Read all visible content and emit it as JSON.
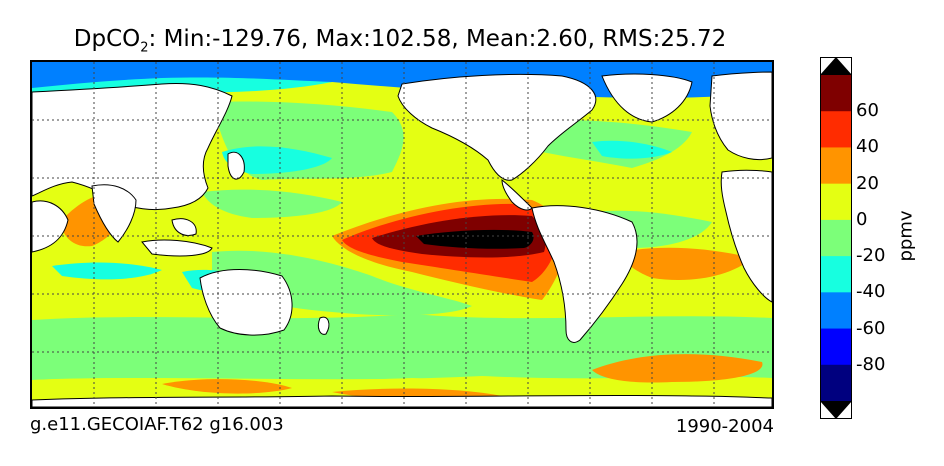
{
  "title": {
    "prefix": "DpCO",
    "subscript": "2",
    "stats": ": Min:-129.76, Max:102.58, Mean:2.60, RMS:25.72"
  },
  "caption": {
    "left": "g.e11.GECOIAF.T62 g16.003",
    "right": "1990-2004"
  },
  "colorbar": {
    "label": "ppmv",
    "ticks": [
      "60",
      "40",
      "20",
      "0",
      "-20",
      "-40",
      "-60",
      "-80"
    ],
    "levels": [
      {
        "range": "< -100",
        "color": "#000000"
      },
      {
        "range": "-100 to -80",
        "color": "#00007f"
      },
      {
        "range": "-80 to -60",
        "color": "#0000ff"
      },
      {
        "range": "-60 to -40",
        "color": "#0080ff"
      },
      {
        "range": "-40 to -20",
        "color": "#17ffe0"
      },
      {
        "range": "-20 to 0",
        "color": "#7cff79"
      },
      {
        "range": "0 to 20",
        "color": "#e4ff13"
      },
      {
        "range": "20 to 40",
        "color": "#ff9400"
      },
      {
        "range": "40 to 60",
        "color": "#ff2c00"
      },
      {
        "range": "60 to 80",
        "color": "#7f0000"
      },
      {
        "range": "> 100",
        "color": "#000000"
      }
    ]
  },
  "map": {
    "projection": "cylindrical equidistant, Pacific-centred",
    "land_color": "#ffffff",
    "gridlines": "dotted"
  }
}
